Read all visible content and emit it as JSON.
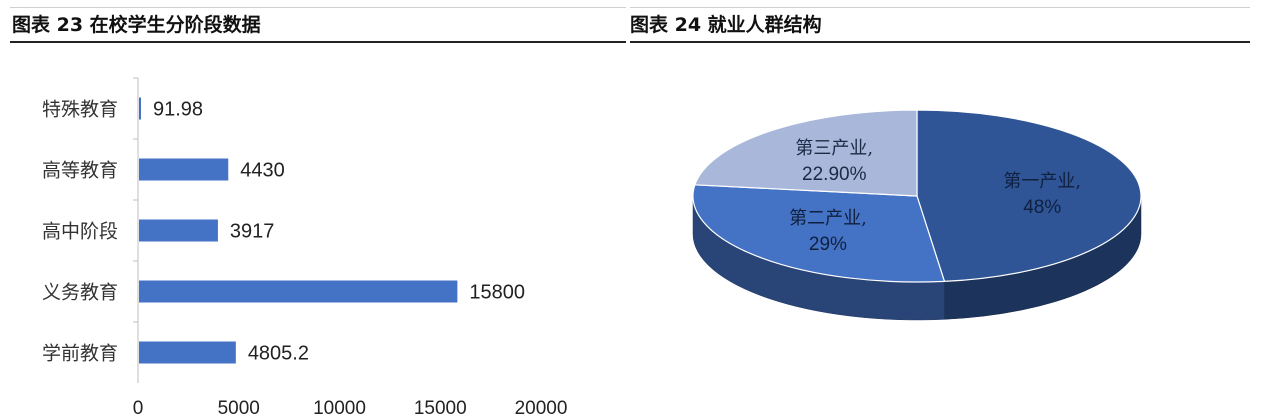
{
  "figures": {
    "left_title": "图表 23 在校学生分阶段数据",
    "right_title": "图表 24 就业人群结构"
  },
  "chart_data": [
    {
      "type": "bar",
      "orientation": "horizontal",
      "categories": [
        "特殊教育",
        "高等教育",
        "高中阶段",
        "义务教育",
        "学前教育"
      ],
      "values": [
        91.98,
        4430,
        3917,
        15800,
        4805.2
      ],
      "value_labels": [
        "91.98",
        "4430",
        "3917",
        "15800",
        "4805.2"
      ],
      "xlim": [
        0,
        20000
      ],
      "xticks": [
        "0",
        "5000",
        "10000",
        "15000",
        "20000"
      ],
      "bar_color": "#4472C4",
      "grid": false,
      "legend": "none"
    },
    {
      "type": "pie",
      "style": "3d",
      "labels": [
        "第一产业,",
        "第二产业,",
        "第三产业,"
      ],
      "values": [
        48,
        29,
        22.9
      ],
      "value_labels": [
        "48%",
        "29%",
        "22.90%"
      ],
      "colors": [
        "#2F5597",
        "#4472C4",
        "#A9B8DA"
      ],
      "legend": "none"
    }
  ]
}
